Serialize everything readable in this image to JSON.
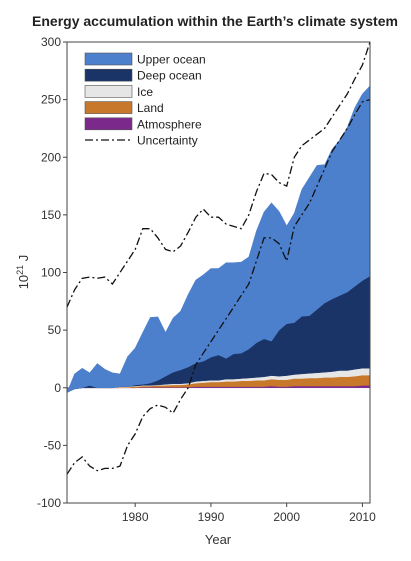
{
  "chart_data": {
    "type": "area",
    "title": "Energy accumulation within the Earth’s climate system",
    "xlabel": "Year",
    "ylabel_base": "10",
    "ylabel_exp": "21",
    "ylabel_unit": "J",
    "xlim": [
      1971,
      2011
    ],
    "ylim": [
      -100,
      300
    ],
    "x_ticks": [
      1980,
      1990,
      2000,
      2010
    ],
    "y_ticks": [
      -100,
      -50,
      0,
      50,
      100,
      150,
      200,
      250,
      300
    ],
    "legend_position": "top-left",
    "years": [
      1971,
      1972,
      1973,
      1974,
      1975,
      1976,
      1977,
      1978,
      1979,
      1980,
      1981,
      1982,
      1983,
      1984,
      1985,
      1986,
      1987,
      1988,
      1989,
      1990,
      1991,
      1992,
      1993,
      1994,
      1995,
      1996,
      1997,
      1998,
      1999,
      2000,
      2001,
      2002,
      2003,
      2004,
      2005,
      2006,
      2007,
      2008,
      2009,
      2010,
      2011
    ],
    "series": [
      {
        "name": "Atmosphere",
        "color": "#7b2a8c",
        "values": [
          -1,
          0,
          0,
          0,
          0,
          0,
          0,
          0,
          0,
          0,
          0.5,
          0.5,
          0.5,
          0.5,
          0.5,
          0.5,
          0.5,
          1,
          1,
          1,
          1,
          1,
          1,
          1,
          1,
          1,
          1,
          1.5,
          1,
          1,
          1.5,
          1.5,
          1.5,
          1.5,
          1.5,
          1.5,
          1.5,
          1.5,
          1.5,
          2,
          2
        ]
      },
      {
        "name": "Land",
        "color": "#c8782a",
        "values": [
          -3,
          -1,
          0,
          0,
          0,
          0,
          0,
          0.5,
          0.5,
          1,
          1,
          1,
          1.5,
          1.5,
          2,
          2,
          2.5,
          3,
          3.5,
          4,
          4,
          4.5,
          4.5,
          5,
          5,
          5.5,
          5.5,
          6,
          6,
          6,
          6.5,
          6.5,
          7,
          7,
          7.5,
          7.5,
          8,
          8,
          8.5,
          9,
          9
        ]
      },
      {
        "name": "Ice",
        "color": "#e6e6e6",
        "values": [
          0,
          0,
          0,
          0,
          0,
          0,
          0,
          0.5,
          0.5,
          0.5,
          0.5,
          0.5,
          0.5,
          1,
          1,
          1,
          1,
          1.5,
          1.5,
          1.5,
          1.5,
          2,
          2,
          2,
          2.5,
          2.5,
          3,
          3,
          3,
          3.5,
          3.5,
          4,
          4,
          4.5,
          4.5,
          5,
          5.5,
          5.5,
          6,
          6,
          6
        ]
      },
      {
        "name": "Deep ocean",
        "color": "#1a3467",
        "values": [
          0,
          0,
          0,
          2,
          0,
          0,
          0,
          0,
          0,
          1,
          1,
          2,
          4,
          7,
          10,
          12,
          14,
          16,
          17,
          20,
          22,
          18,
          22,
          22,
          25,
          30,
          33,
          30,
          40,
          45,
          45,
          50,
          50,
          55,
          60,
          63,
          65,
          68,
          72,
          76,
          80
        ]
      },
      {
        "name": "Upper ocean",
        "color": "#4c7fcc",
        "values": [
          0,
          13,
          17,
          11,
          21,
          16,
          13,
          11,
          26,
          32,
          45,
          57,
          55,
          38,
          47,
          51,
          63,
          72,
          75,
          77,
          75,
          83,
          79,
          79,
          80,
          97,
          110,
          120,
          103,
          85,
          95,
          110,
          120,
          125,
          120,
          130,
          135,
          143,
          155,
          162,
          165
        ]
      }
    ],
    "uncertainty": {
      "name": "Uncertainty",
      "upper": [
        70,
        85,
        95,
        96,
        95,
        96,
        90,
        100,
        110,
        120,
        138,
        138,
        130,
        120,
        118,
        123,
        135,
        148,
        155,
        148,
        148,
        142,
        140,
        138,
        150,
        170,
        186,
        185,
        178,
        175,
        200,
        210,
        215,
        220,
        225,
        235,
        245,
        255,
        268,
        280,
        300
      ],
      "lower": [
        -75,
        -65,
        -60,
        -68,
        -72,
        -70,
        -70,
        -68,
        -50,
        -40,
        -25,
        -18,
        -15,
        -17,
        -22,
        -10,
        0,
        20,
        30,
        40,
        50,
        60,
        70,
        80,
        90,
        110,
        130,
        130,
        125,
        110,
        140,
        150,
        160,
        175,
        190,
        205,
        215,
        225,
        237,
        248,
        250
      ]
    }
  }
}
